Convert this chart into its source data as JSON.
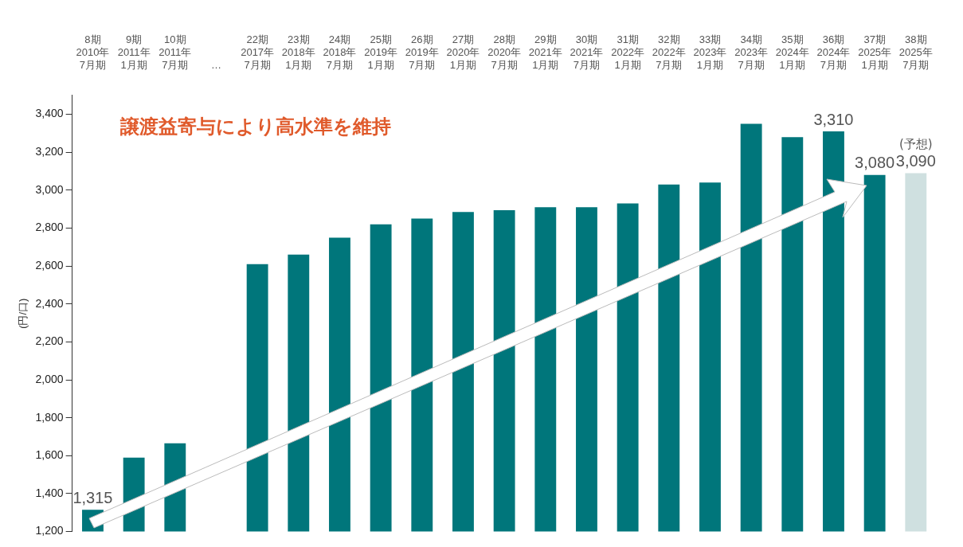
{
  "chart_data": {
    "type": "bar",
    "ylabel": "(円/口)",
    "categories": [
      "8期\n2010年\n7月期",
      "9期\n2011年\n1月期",
      "10期\n2011年\n7月期",
      "…",
      "22期\n2017年\n7月期",
      "23期\n2018年\n1月期",
      "24期\n2018年\n7月期",
      "25期\n2019年\n1月期",
      "26期\n2019年\n7月期",
      "27期\n2020年\n1月期",
      "28期\n2020年\n7月期",
      "29期\n2021年\n1月期",
      "30期\n2021年\n7月期",
      "31期\n2022年\n1月期",
      "32期\n2022年\n7月期",
      "33期\n2023年\n1月期",
      "34期\n2023年\n7月期",
      "35期\n2024年\n1月期",
      "36期\n2024年\n7月期",
      "37期\n2025年\n1月期",
      "38期\n2025年\n7月期"
    ],
    "values": [
      1315,
      1590,
      1665,
      null,
      2610,
      2660,
      2750,
      2820,
      2850,
      2885,
      2895,
      2910,
      2910,
      2930,
      3030,
      3040,
      3350,
      3280,
      3310,
      3080,
      3090
    ],
    "colors": [
      "#00767b",
      "#00767b",
      "#00767b",
      "#00767b",
      "#00767b",
      "#00767b",
      "#00767b",
      "#00767b",
      "#00767b",
      "#00767b",
      "#00767b",
      "#00767b",
      "#00767b",
      "#00767b",
      "#00767b",
      "#00767b",
      "#00767b",
      "#00767b",
      "#00767b",
      "#00767b",
      "#cfe0e0"
    ],
    "value_labels": [
      "1,315",
      null,
      null,
      null,
      null,
      null,
      null,
      null,
      null,
      null,
      null,
      null,
      null,
      null,
      null,
      null,
      null,
      null,
      "3,310",
      "3,080",
      "3,090"
    ],
    "ylim": [
      1200,
      3500
    ],
    "yticks": [
      {
        "value": 1200,
        "label": "1,200"
      },
      {
        "value": 1400,
        "label": "1,400"
      },
      {
        "value": 1600,
        "label": "1,600"
      },
      {
        "value": 1800,
        "label": "1,800"
      },
      {
        "value": 2000,
        "label": "2,000"
      },
      {
        "value": 2200,
        "label": "2,200"
      },
      {
        "value": 2400,
        "label": "2,400"
      },
      {
        "value": 2600,
        "label": "2,600"
      },
      {
        "value": 2800,
        "label": "2,800"
      },
      {
        "value": 3000,
        "label": "3,000"
      },
      {
        "value": 3200,
        "label": "3,200"
      },
      {
        "value": 3400,
        "label": "3,400"
      }
    ],
    "grid": false,
    "legend": false,
    "annotations": [
      "譲渡益寄与により高水準を維持",
      {
        "text": "(予想)",
        "x": "38期\n2025年\n7月期",
        "y": 3090
      }
    ]
  }
}
